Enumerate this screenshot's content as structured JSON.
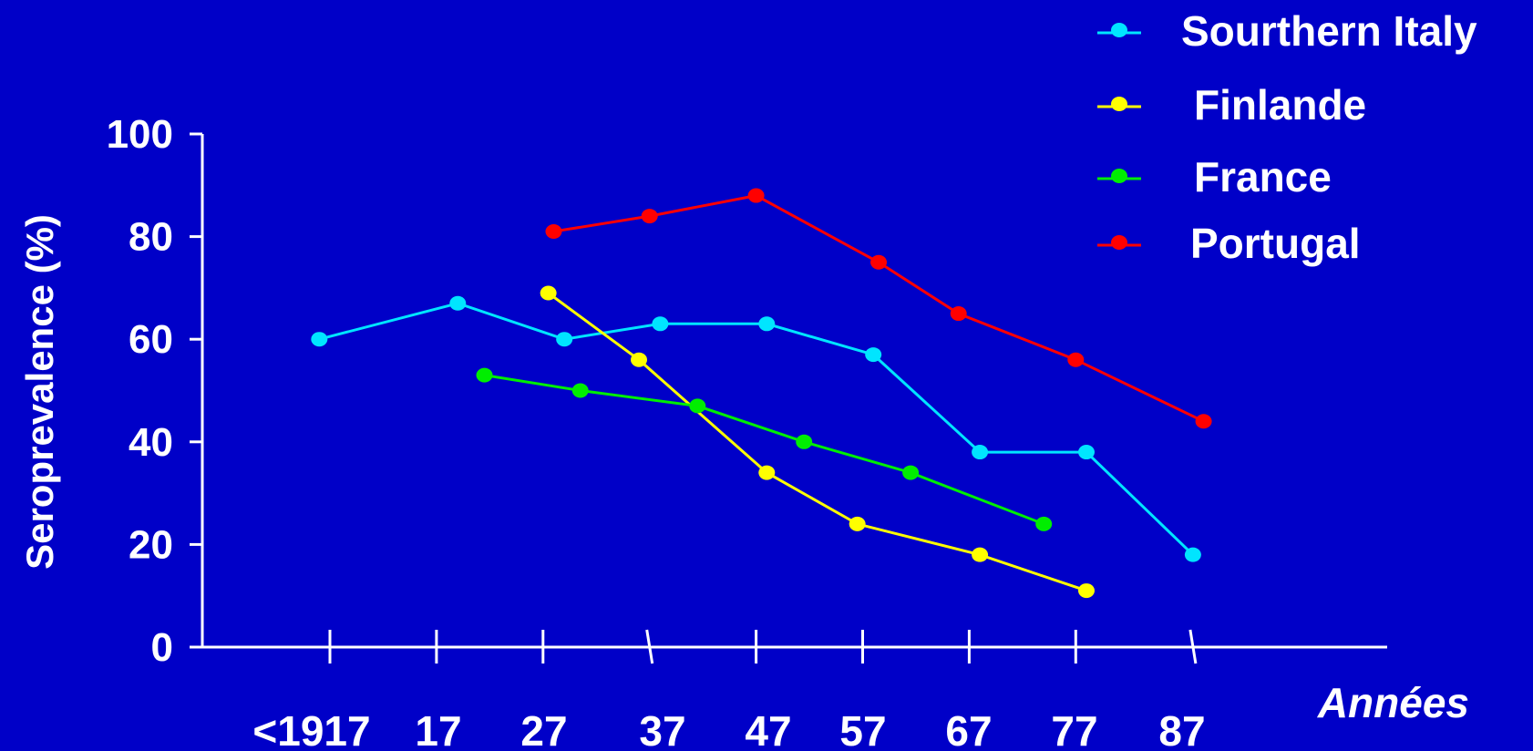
{
  "chart_data": {
    "type": "line",
    "title": "",
    "xlabel": "Années",
    "ylabel": "Seroprevalence  (%)",
    "ylim": [
      0,
      100
    ],
    "y_ticks": [
      "0",
      "20",
      "40",
      "60",
      "80",
      "100"
    ],
    "x_tick_labels": [
      "<1917",
      "17",
      "27",
      "37",
      "47",
      "57",
      "67",
      "77",
      "87"
    ],
    "grid": false,
    "legend_position": "top-right",
    "series": [
      {
        "name": "Sourthern Italy",
        "color": "#00E5FF",
        "points": [
          [
            1906,
            60
          ],
          [
            1919,
            67
          ],
          [
            1929,
            60
          ],
          [
            1938,
            63
          ],
          [
            1948,
            63
          ],
          [
            1958,
            57
          ],
          [
            1968,
            38
          ],
          [
            1978,
            38
          ],
          [
            1988,
            18
          ]
        ]
      },
      {
        "name": "Finlande",
        "color": "#FFFF00",
        "points": [
          [
            1927.5,
            69
          ],
          [
            1936,
            56
          ],
          [
            1948,
            34
          ],
          [
            1956.5,
            24
          ],
          [
            1968,
            18
          ],
          [
            1978,
            11
          ]
        ]
      },
      {
        "name": "France",
        "color": "#00EE00",
        "points": [
          [
            1921.5,
            53
          ],
          [
            1930.5,
            50
          ],
          [
            1941.5,
            47
          ],
          [
            1951.5,
            40
          ],
          [
            1961.5,
            34
          ],
          [
            1974,
            24
          ]
        ]
      },
      {
        "name": "Portugal",
        "color": "#FF0000",
        "points": [
          [
            1928,
            81
          ],
          [
            1937,
            84
          ],
          [
            1947,
            88
          ],
          [
            1958.5,
            75
          ],
          [
            1966,
            65
          ],
          [
            1977,
            56
          ],
          [
            1989,
            44
          ]
        ]
      }
    ]
  }
}
